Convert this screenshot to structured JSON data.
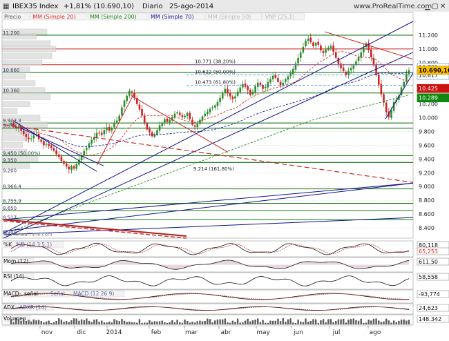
{
  "header": {
    "symbol": "IBEX35 Index",
    "change": "+1,81% (10.690,10)",
    "period": "Diario",
    "date": "25-ago-2014",
    "site": "www.ProRealTime.com",
    "watermark": "© ProRealTime.com"
  },
  "legend_main": [
    "Precio",
    "MM (Simple 20)",
    "MM (Simple 200)",
    "MM (Simple 70)",
    "MM (Simple 50)",
    "VNP (25,1)"
  ],
  "colors": {
    "up": "#2e8b2e",
    "down": "#cc2222",
    "ma20": "#dd3333",
    "ma200": "#228822",
    "ma70": "#1a1a9a",
    "channel": "#11118a",
    "hline": "#117711",
    "fib": "#4488cc",
    "price_tag": "#ffc000",
    "red_tag": "#cc1111",
    "green_tag": "#118811",
    "grid": "#c8d8c8"
  },
  "chart_data": {
    "type": "candlestick",
    "x_months": [
      "nov",
      "dic",
      "2014",
      "feb",
      "mar",
      "abr",
      "may",
      "jun",
      "jul",
      "ago"
    ],
    "y_ticks": [
      8400,
      8600,
      8800,
      9000,
      9200,
      9400,
      9600,
      9800,
      10000,
      10200,
      10400,
      10600,
      10800,
      11000,
      11200
    ],
    "y_tick_labels": [
      "8.400",
      "8.600",
      "8.800",
      "9.000",
      "9.200",
      "9.400",
      "9.600",
      "9.800",
      "10.000",
      "10.200",
      "10.400",
      "10.600",
      "10.800",
      "11.000",
      "11.200"
    ],
    "ylim": [
      8250,
      11400
    ],
    "last_price": "10.690,10",
    "price_tags": [
      {
        "value": 10731,
        "label": "10.731",
        "style": "fib"
      },
      {
        "value": 10617,
        "label": "10.617",
        "style": "fib"
      },
      {
        "value": 10425,
        "label": "10.425",
        "style": "red"
      },
      {
        "value": 10289,
        "label": "10.289",
        "style": "green"
      },
      {
        "value": 10690,
        "label": "10.690,10",
        "style": "price"
      }
    ],
    "fib_labels": [
      {
        "value": 10771,
        "label": "10.771 (38,20%)"
      },
      {
        "value": 10622,
        "label": "10.622 (50,00%)"
      },
      {
        "value": 10473,
        "label": "10.473 (61,80%)"
      },
      {
        "value": 9214,
        "label": "9.214 (161,80%)"
      }
    ],
    "left_labels": [
      "11.200",
      "10.660",
      "10.360",
      "9.923,3",
      "9.848,5",
      "9.450 (50,00%)",
      "9.350",
      "9.200",
      "8.966,4",
      "8.755,9",
      "8.650",
      "8.517",
      "8.300"
    ],
    "closes": [
      9920,
      9880,
      9850,
      9870,
      9810,
      9760,
      9720,
      9690,
      9700,
      9740,
      9760,
      9690,
      9650,
      9600,
      9620,
      9590,
      9560,
      9520,
      9470,
      9430,
      9370,
      9330,
      9290,
      9250,
      9300,
      9260,
      9330,
      9390,
      9450,
      9520,
      9560,
      9630,
      9680,
      9720,
      9780,
      9770,
      9750,
      9820,
      9860,
      9810,
      9850,
      9930,
      9960,
      10030,
      10150,
      10250,
      10320,
      10390,
      10370,
      10290,
      10200,
      10120,
      10030,
      9920,
      9830,
      9790,
      9730,
      9760,
      9820,
      9890,
      9930,
      9980,
      9940,
      9970,
      10010,
      10060,
      10080,
      10040,
      10010,
      10030,
      10070,
      9980,
      9900,
      9870,
      9910,
      9970,
      10020,
      10060,
      10090,
      10130,
      10150,
      10180,
      10230,
      10290,
      10360,
      10420,
      10360,
      10310,
      10270,
      10310,
      10380,
      10440,
      10490,
      10450,
      10400,
      10330,
      10380,
      10460,
      10510,
      10480,
      10420,
      10450,
      10520,
      10560,
      10610,
      10580,
      10520,
      10470,
      10510,
      10560,
      10600,
      10650,
      10710,
      10790,
      10870,
      10950,
      11030,
      11120,
      11150,
      11100,
      11040,
      11090,
      11060,
      10980,
      10940,
      10990,
      11020,
      11040,
      10960,
      10870,
      10780,
      10720,
      10680,
      10620,
      10680,
      10720,
      10760,
      10820,
      10880,
      10950,
      11020,
      11080,
      10980,
      10880,
      10760,
      10620,
      10480,
      10340,
      10220,
      10080,
      10010,
      10110,
      10230,
      10260,
      10320,
      10440,
      10520,
      10640,
      10690
    ],
    "osc_panels": [
      {
        "name": "%K",
        "legend": [
          "%K",
          "%D (14 3 5,1)"
        ],
        "tags": [
          "80,118",
          "65,253"
        ]
      },
      {
        "name": "Mom (12)",
        "legend": [
          "Mom (12)"
        ],
        "tags": [
          "611,50"
        ]
      },
      {
        "name": "RSI (14)",
        "legend": [
          "RSI (14)"
        ],
        "tags": [
          "58,558"
        ]
      },
      {
        "name": "MACD",
        "legend": [
          "MACD-, señal",
          "Señal",
          "MACD (12 26 9)"
        ],
        "tags": [
          "-93,774"
        ]
      },
      {
        "name": "ADX",
        "legend": [
          "ADX",
          "ADXR (14)"
        ],
        "tags": [
          "24,623"
        ]
      },
      {
        "name": "Volumen",
        "legend": [
          "Volumen"
        ],
        "tags": [
          "148.342"
        ]
      }
    ]
  }
}
